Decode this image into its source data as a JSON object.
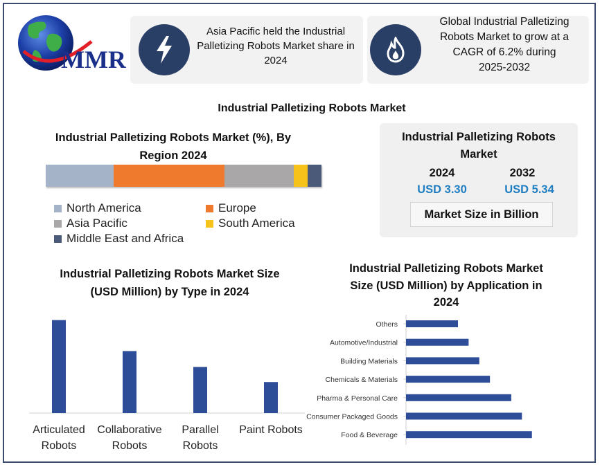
{
  "brand": {
    "logo_text": "MMR"
  },
  "cards": [
    {
      "icon": "lightning-icon",
      "text": [
        "Asia Pacific held the Industrial",
        "Palletizing Robots Market share in",
        "2024"
      ]
    },
    {
      "icon": "flame-icon",
      "text": [
        "Global Industrial Palletizing",
        "Robots Market to grow at a",
        "CAGR of 6.2% during",
        "2025-2032"
      ]
    }
  ],
  "main_title": "Industrial Palletizing Robots Market",
  "region_section": {
    "title": [
      "Industrial Palletizing Robots Market (%), By",
      "Region 2024"
    ],
    "legend": [
      {
        "label": "North America",
        "color": "#a5b3c8"
      },
      {
        "label": "Europe",
        "color": "#ef7a2d"
      },
      {
        "label": "Asia Pacific",
        "color": "#a9a7a7"
      },
      {
        "label": "South America",
        "color": "#f7c21a"
      },
      {
        "label": "Middle East and Africa",
        "color": "#4a5a78"
      }
    ]
  },
  "market_box": {
    "title": [
      "Industrial Palletizing Robots",
      "Market"
    ],
    "year_a": "2024",
    "value_a": "USD 3.30",
    "year_b": "2032",
    "value_b": "USD 5.34",
    "unit_label": "Market Size in Billion"
  },
  "type_section": {
    "title": [
      "Industrial Palletizing Robots Market Size",
      "(USD Million) by Type in 2024"
    ]
  },
  "app_section": {
    "title": [
      "Industrial Palletizing Robots Market",
      "Size (USD Million)  by Application in",
      "2024"
    ]
  },
  "chart_data": [
    {
      "type": "bar",
      "orientation": "horizontal-stacked",
      "title": "Industrial Palletizing Robots Market (%), By Region 2024",
      "categories": [
        "North America",
        "Europe",
        "Asia Pacific",
        "South America",
        "Middle East and Africa"
      ],
      "values": [
        24.5,
        40,
        25,
        5,
        5
      ],
      "colors": [
        "#a5b3c8",
        "#ef7a2d",
        "#a9a7a7",
        "#f7c21a",
        "#4a5a78"
      ],
      "legend": "bottom"
    },
    {
      "type": "bar",
      "title": "Industrial Palletizing Robots Market Size (USD Million) by Type in 2024",
      "categories": [
        [
          "Articulated",
          "Robots"
        ],
        [
          "Collaborative",
          "Robots"
        ],
        [
          "Parallel",
          "Robots"
        ],
        [
          "Paint Robots"
        ]
      ],
      "values": [
        123,
        82,
        61,
        41
      ],
      "color": "#2e4d98",
      "ylim": [
        0,
        130
      ],
      "grid": false
    },
    {
      "type": "bar",
      "orientation": "horizontal",
      "title": "Industrial Palletizing Robots Market Size (USD Million) by Application in 2024",
      "categories": [
        "Others",
        "Automotive/Industrial",
        "Building Materials",
        "Chemicals & Materials",
        "Pharma & Personal Care",
        "Consumer Packaged Goods",
        "Food & Beverage"
      ],
      "values": [
        78,
        94,
        110,
        126,
        158,
        174,
        189
      ],
      "color": "#2e4d98",
      "xlim": [
        0,
        260
      ],
      "grid": false
    }
  ]
}
